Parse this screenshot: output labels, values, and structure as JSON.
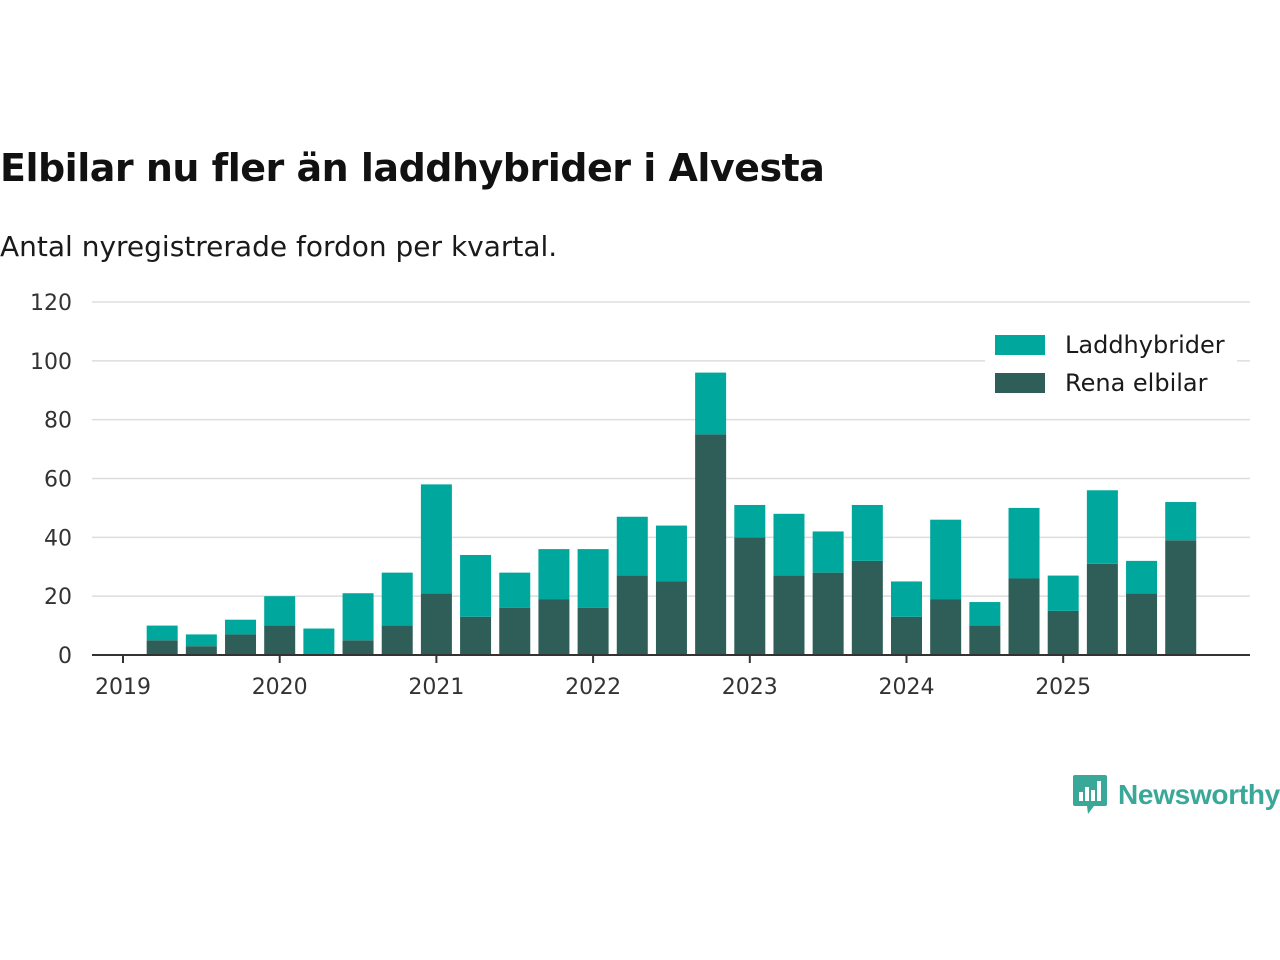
{
  "title": "Elbilar nu fler än laddhybrider i Alvesta",
  "subtitle": "Antal nyregistrerade fordon per kvartal.",
  "brand": "Newsworthy",
  "brand_icon": "bar-chart-bubble-icon",
  "colors": {
    "laddhybrider": "#00a79d",
    "elbilar": "#2f5e58",
    "grid": "#dddddd",
    "axis": "#333333",
    "brand": "#3aa898"
  },
  "chart_data": {
    "type": "bar",
    "stacked": true,
    "title": "Elbilar nu fler än laddhybrider i Alvesta",
    "subtitle": "Antal nyregistrerade fordon per kvartal.",
    "xlabel": "",
    "ylabel": "",
    "ylim": [
      0,
      120
    ],
    "yticks": [
      0,
      20,
      40,
      60,
      80,
      100,
      120
    ],
    "xticks": [
      "2019",
      "2020",
      "2021",
      "2022",
      "2023",
      "2024",
      "2025"
    ],
    "grid": true,
    "legend_position": "top-right",
    "categories": [
      "2019 Q2",
      "2019 Q3",
      "2019 Q4",
      "2020 Q1",
      "2020 Q2",
      "2020 Q3",
      "2020 Q4",
      "2021 Q1",
      "2021 Q2",
      "2021 Q3",
      "2021 Q4",
      "2022 Q1",
      "2022 Q2",
      "2022 Q3",
      "2022 Q4",
      "2023 Q1",
      "2023 Q2",
      "2023 Q3",
      "2023 Q4",
      "2024 Q1",
      "2024 Q2",
      "2024 Q3",
      "2024 Q4",
      "2025 Q1",
      "2025 Q2",
      "2025 Q3",
      "2025 Q4"
    ],
    "series": [
      {
        "name": "Rena elbilar",
        "values": [
          5,
          3,
          7,
          10,
          0,
          5,
          10,
          21,
          13,
          16,
          19,
          16,
          27,
          25,
          75,
          40,
          27,
          28,
          32,
          13,
          19,
          10,
          26,
          15,
          31,
          21,
          39
        ]
      },
      {
        "name": "Laddhybrider",
        "values": [
          5,
          4,
          5,
          10,
          9,
          16,
          18,
          37,
          21,
          12,
          17,
          20,
          20,
          19,
          21,
          11,
          21,
          14,
          19,
          12,
          27,
          8,
          24,
          12,
          25,
          11,
          13
        ]
      }
    ]
  },
  "legend": [
    {
      "label": "Laddhybrider",
      "color": "#00a79d"
    },
    {
      "label": "Rena elbilar",
      "color": "#2f5e58"
    }
  ]
}
